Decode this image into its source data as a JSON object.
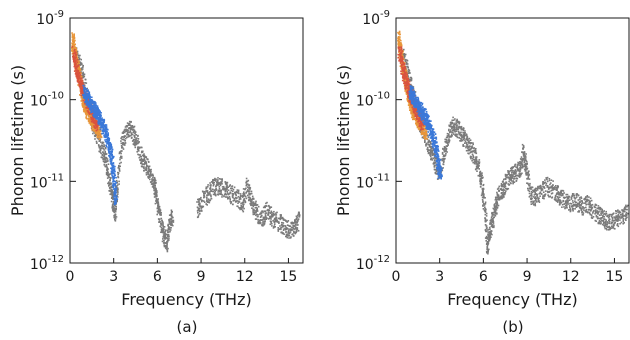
{
  "chart_data": [
    {
      "type": "scatter",
      "panel_label": "(a)",
      "xlabel": "Frequency (THz)",
      "ylabel": "Phonon lifetime (s)",
      "xlim": [
        0,
        16
      ],
      "ylim": [
        1e-12,
        1e-09
      ],
      "yscale": "log",
      "x_ticks": [
        "0",
        "3",
        "6",
        "9",
        "12",
        "15"
      ],
      "y_ticks": [
        {
          "base": "10",
          "exp": "-12",
          "value": 1e-12
        },
        {
          "base": "10",
          "exp": "-11",
          "value": 1e-11
        },
        {
          "base": "10",
          "exp": "-10",
          "value": 1e-10
        },
        {
          "base": "10",
          "exp": "-9",
          "value": 1e-09
        }
      ],
      "grid": false,
      "series": [
        {
          "color": "#7a7a7a",
          "points": [
            [
              0.4,
              3.5e-10
            ],
            [
              0.7,
              2.5e-10
            ],
            [
              1.0,
              1.4e-10
            ],
            [
              1.3,
              8e-11
            ],
            [
              1.6,
              4.5e-11
            ],
            [
              2.0,
              3e-11
            ],
            [
              2.3,
              2.2e-11
            ],
            [
              2.5,
              1.6e-11
            ],
            [
              2.7,
              9e-12
            ],
            [
              2.9,
              6e-12
            ],
            [
              3.05,
              4e-12
            ],
            [
              3.2,
              9e-12
            ],
            [
              3.5,
              3e-11
            ],
            [
              3.8,
              4e-11
            ],
            [
              4.1,
              4.5e-11
            ],
            [
              4.4,
              3.5e-11
            ],
            [
              4.7,
              2.5e-11
            ],
            [
              5.0,
              1.8e-11
            ],
            [
              5.3,
              1.5e-11
            ],
            [
              5.6,
              1.1e-11
            ],
            [
              5.8,
              8e-12
            ],
            [
              6.0,
              5e-12
            ],
            [
              6.2,
              3.2e-12
            ],
            [
              6.4,
              2.2e-12
            ],
            [
              6.6,
              1.8e-12
            ],
            [
              6.8,
              3.2e-12
            ],
            [
              7.0,
              3.8e-12
            ],
            [
              8.7,
              4.5e-12
            ],
            [
              9.0,
              6e-12
            ],
            [
              9.4,
              7e-12
            ],
            [
              9.8,
              8.5e-12
            ],
            [
              10.2,
              9e-12
            ],
            [
              10.6,
              8e-12
            ],
            [
              11.0,
              7e-12
            ],
            [
              11.4,
              6.5e-12
            ],
            [
              11.8,
              5.5e-12
            ],
            [
              12.1,
              9e-12
            ],
            [
              12.4,
              6e-12
            ],
            [
              12.7,
              4.5e-12
            ],
            [
              13.1,
              3.5e-12
            ],
            [
              13.5,
              4.5e-12
            ],
            [
              13.9,
              3.5e-12
            ],
            [
              14.3,
              3.2e-12
            ],
            [
              14.7,
              2.8e-12
            ],
            [
              15.1,
              2.5e-12
            ],
            [
              15.4,
              2.7e-12
            ],
            [
              15.7,
              3.5e-12
            ]
          ]
        },
        {
          "color": "#e8963a",
          "points": [
            [
              0.1,
              6e-10
            ],
            [
              0.2,
              4.5e-10
            ],
            [
              0.3,
              3.6e-10
            ],
            [
              0.4,
              2.8e-10
            ],
            [
              0.5,
              2.3e-10
            ],
            [
              0.6,
              1.9e-10
            ],
            [
              0.7,
              1.5e-10
            ],
            [
              0.8,
              1.2e-10
            ],
            [
              0.9,
              1e-10
            ],
            [
              1.0,
              8.5e-11
            ],
            [
              1.2,
              7e-11
            ],
            [
              1.4,
              6e-11
            ],
            [
              1.6,
              5e-11
            ],
            [
              1.8,
              4.5e-11
            ],
            [
              2.0,
              4e-11
            ]
          ]
        },
        {
          "color": "#d9533f",
          "points": [
            [
              0.2,
              4e-10
            ],
            [
              0.4,
              2.5e-10
            ],
            [
              0.6,
              1.8e-10
            ],
            [
              0.8,
              1.4e-10
            ],
            [
              1.0,
              1.1e-10
            ],
            [
              1.2,
              9e-11
            ],
            [
              1.4,
              7.5e-11
            ],
            [
              1.6,
              6e-11
            ],
            [
              1.8,
              5e-11
            ]
          ]
        },
        {
          "color": "#3b78d8",
          "points": [
            [
              0.9,
              1.3e-10
            ],
            [
              1.1,
              1.1e-10
            ],
            [
              1.3,
              9.5e-11
            ],
            [
              1.5,
              8.5e-11
            ],
            [
              1.7,
              7.5e-11
            ],
            [
              1.9,
              6.5e-11
            ],
            [
              2.1,
              5.5e-11
            ],
            [
              2.3,
              4.5e-11
            ],
            [
              2.5,
              3.5e-11
            ],
            [
              2.7,
              2.6e-11
            ],
            [
              2.85,
              1.8e-11
            ],
            [
              3.0,
              1e-11
            ],
            [
              3.1,
              5e-12
            ]
          ]
        }
      ]
    },
    {
      "type": "scatter",
      "panel_label": "(b)",
      "xlabel": "Frequency (THz)",
      "ylabel": "Phonon lifetime (s)",
      "xlim": [
        0,
        16
      ],
      "ylim": [
        1e-12,
        1e-09
      ],
      "yscale": "log",
      "x_ticks": [
        "0",
        "3",
        "6",
        "9",
        "12",
        "15"
      ],
      "y_ticks": [
        {
          "base": "10",
          "exp": "-12",
          "value": 1e-12
        },
        {
          "base": "10",
          "exp": "-11",
          "value": 1e-11
        },
        {
          "base": "10",
          "exp": "-10",
          "value": 1e-10
        },
        {
          "base": "10",
          "exp": "-9",
          "value": 1e-09
        }
      ],
      "grid": false,
      "series": [
        {
          "color": "#7a7a7a",
          "points": [
            [
              0.4,
              3.5e-10
            ],
            [
              0.7,
              2.5e-10
            ],
            [
              1.0,
              1.5e-10
            ],
            [
              1.3,
              9e-11
            ],
            [
              1.6,
              5e-11
            ],
            [
              2.0,
              3.5e-11
            ],
            [
              2.3,
              2.5e-11
            ],
            [
              2.6,
              1.8e-11
            ],
            [
              2.8,
              1.4e-11
            ],
            [
              3.0,
              1.3e-11
            ],
            [
              3.3,
              2.5e-11
            ],
            [
              3.6,
              4e-11
            ],
            [
              3.9,
              5e-11
            ],
            [
              4.2,
              4.5e-11
            ],
            [
              4.5,
              3.8e-11
            ],
            [
              4.8,
              3e-11
            ],
            [
              5.1,
              2.5e-11
            ],
            [
              5.4,
              2e-11
            ],
            [
              5.7,
              1.3e-11
            ],
            [
              5.9,
              8e-12
            ],
            [
              6.1,
              4e-12
            ],
            [
              6.2,
              1.6e-12
            ],
            [
              6.4,
              2.5e-12
            ],
            [
              6.6,
              3.5e-12
            ],
            [
              6.8,
              5e-12
            ],
            [
              7.0,
              7e-12
            ],
            [
              7.3,
              8e-12
            ],
            [
              7.6,
              1.05e-11
            ],
            [
              7.9,
              1.2e-11
            ],
            [
              8.2,
              1.3e-11
            ],
            [
              8.5,
              1.5e-11
            ],
            [
              8.7,
              2.3e-11
            ],
            [
              8.9,
              1.5e-11
            ],
            [
              9.2,
              7e-12
            ],
            [
              9.5,
              6.5e-12
            ],
            [
              9.9,
              7.5e-12
            ],
            [
              10.3,
              9e-12
            ],
            [
              10.7,
              8e-12
            ],
            [
              11.1,
              7e-12
            ],
            [
              11.5,
              6e-12
            ],
            [
              11.9,
              5.5e-12
            ],
            [
              12.3,
              6e-12
            ],
            [
              12.7,
              5e-12
            ],
            [
              13.1,
              5.5e-12
            ],
            [
              13.5,
              4.5e-12
            ],
            [
              13.9,
              4e-12
            ],
            [
              14.3,
              3.5e-12
            ],
            [
              14.7,
              3.2e-12
            ],
            [
              15.1,
              3.5e-12
            ],
            [
              15.5,
              3.8e-12
            ],
            [
              15.8,
              4.2e-12
            ]
          ]
        },
        {
          "color": "#e8963a",
          "points": [
            [
              0.1,
              6e-10
            ],
            [
              0.2,
              4.5e-10
            ],
            [
              0.3,
              3.6e-10
            ],
            [
              0.4,
              2.8e-10
            ],
            [
              0.5,
              2.3e-10
            ],
            [
              0.6,
              1.9e-10
            ],
            [
              0.7,
              1.5e-10
            ],
            [
              0.8,
              1.2e-10
            ],
            [
              0.9,
              1e-10
            ],
            [
              1.0,
              8.5e-11
            ],
            [
              1.2,
              7e-11
            ],
            [
              1.4,
              6e-11
            ],
            [
              1.6,
              5e-11
            ],
            [
              1.8,
              4.5e-11
            ],
            [
              2.0,
              4e-11
            ]
          ]
        },
        {
          "color": "#d9533f",
          "points": [
            [
              0.2,
              4e-10
            ],
            [
              0.4,
              2.5e-10
            ],
            [
              0.6,
              1.8e-10
            ],
            [
              0.8,
              1.4e-10
            ],
            [
              1.0,
              1.1e-10
            ],
            [
              1.2,
              9e-11
            ],
            [
              1.4,
              7.5e-11
            ],
            [
              1.6,
              6e-11
            ],
            [
              1.8,
              5e-11
            ]
          ]
        },
        {
          "color": "#3b78d8",
          "points": [
            [
              0.9,
              1.3e-10
            ],
            [
              1.1,
              1.1e-10
            ],
            [
              1.3,
              9.5e-11
            ],
            [
              1.5,
              8.5e-11
            ],
            [
              1.7,
              7.5e-11
            ],
            [
              1.9,
              6.5e-11
            ],
            [
              2.1,
              5.5e-11
            ],
            [
              2.3,
              4.5e-11
            ],
            [
              2.5,
              3.5e-11
            ],
            [
              2.7,
              2.6e-11
            ],
            [
              2.85,
              1.8e-11
            ],
            [
              3.0,
              1.2e-11
            ]
          ]
        }
      ]
    }
  ]
}
